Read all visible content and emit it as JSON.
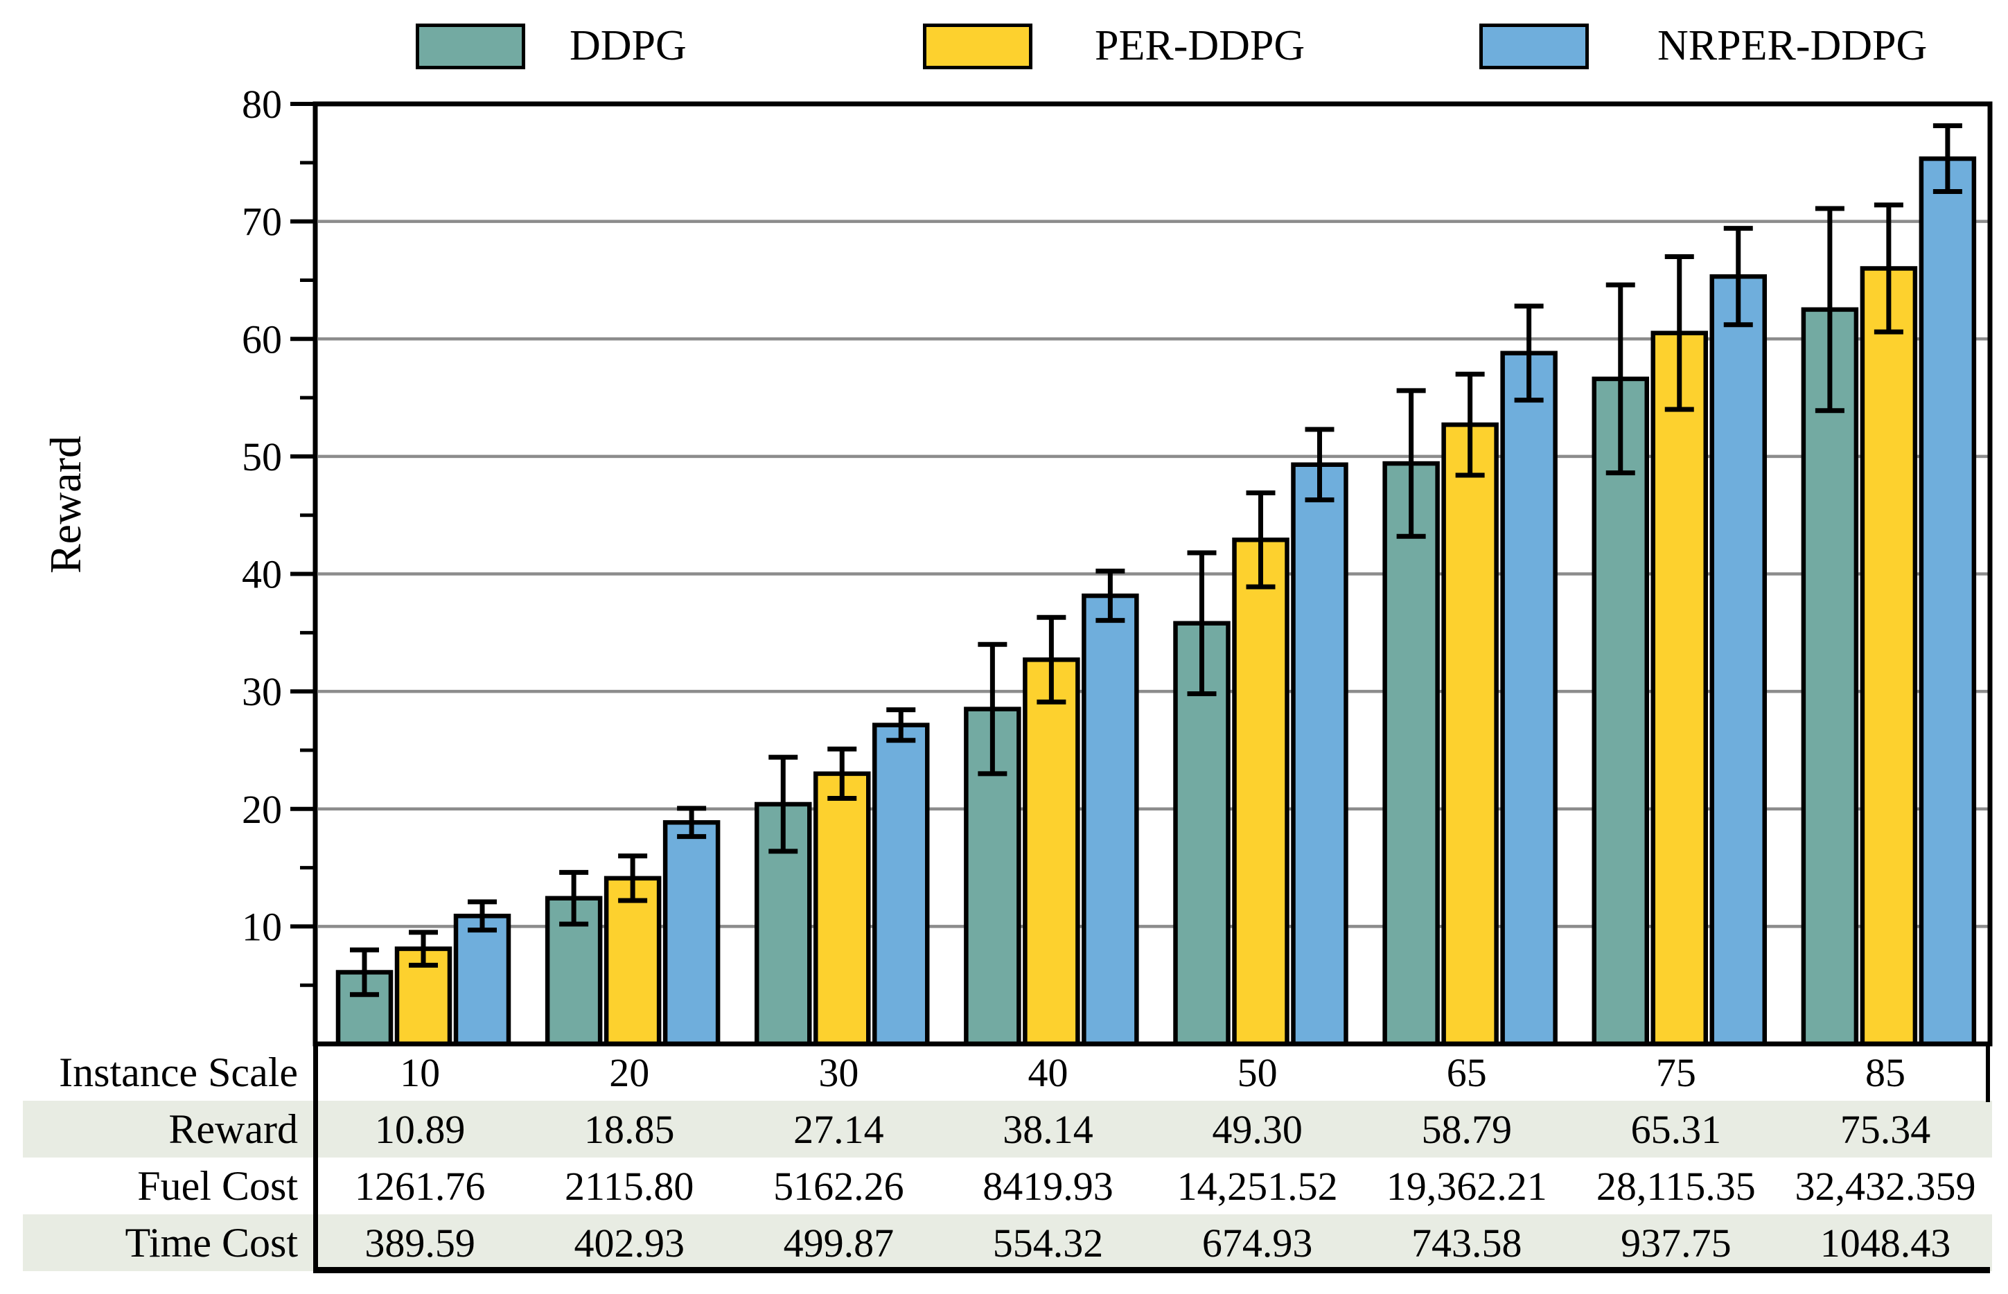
{
  "legend": {
    "items": [
      {
        "label": "DDPG"
      },
      {
        "label": "PER-DDPG"
      },
      {
        "label": "NRPER-DDPG"
      }
    ]
  },
  "chart_data": {
    "type": "bar",
    "title": "",
    "ylabel": "Reward",
    "xlabel": "Instance Scale",
    "ylim": [
      0,
      80
    ],
    "ytick_step": 10,
    "ytick_labels": [
      "10",
      "20",
      "30",
      "40",
      "50",
      "60",
      "70",
      "80"
    ],
    "grid": true,
    "legend_position": "top",
    "categories": [
      "10",
      "20",
      "30",
      "40",
      "50",
      "65",
      "75",
      "85"
    ],
    "series": [
      {
        "name": "DDPG",
        "color": "#73AAA2",
        "values": [
          6.1,
          12.4,
          20.4,
          28.5,
          35.8,
          49.4,
          56.6,
          62.5
        ],
        "errors": [
          1.9,
          2.2,
          4.0,
          5.5,
          6.0,
          6.2,
          8.0,
          8.6
        ]
      },
      {
        "name": "PER-DDPG",
        "color": "#FDD12E",
        "values": [
          8.1,
          14.1,
          23.0,
          32.7,
          42.9,
          52.7,
          60.5,
          66.0
        ],
        "errors": [
          1.4,
          1.9,
          2.1,
          3.6,
          4.0,
          4.3,
          6.5,
          5.4
        ]
      },
      {
        "name": "NRPER-DDPG",
        "color": "#6FAEDC",
        "values": [
          10.89,
          18.85,
          27.14,
          38.14,
          49.3,
          58.79,
          65.31,
          75.34
        ],
        "errors": [
          1.2,
          1.2,
          1.3,
          2.1,
          3.0,
          4.0,
          4.1,
          2.8
        ]
      }
    ]
  },
  "table": {
    "row_labels": [
      "Instance Scale",
      "Reward",
      "Fuel Cost",
      "Time Cost"
    ],
    "instance_scale": [
      "10",
      "20",
      "30",
      "40",
      "50",
      "65",
      "75",
      "85"
    ],
    "reward": [
      "10.89",
      "18.85",
      "27.14",
      "38.14",
      "49.30",
      "58.79",
      "65.31",
      "75.34"
    ],
    "fuel_cost": [
      "1261.76",
      "2115.80",
      "5162.26",
      "8419.93",
      "14,251.52",
      "19,362.21",
      "28,115.35",
      "32,432.359"
    ],
    "time_cost": [
      "389.59",
      "402.93",
      "499.87",
      "554.32",
      "674.93",
      "743.58",
      "937.75",
      "1048.43"
    ]
  },
  "colors": {
    "axis": "#000000",
    "grid": "#8C8C8C",
    "row_band": "#E8ECE3",
    "background": "#FFFFFF"
  }
}
